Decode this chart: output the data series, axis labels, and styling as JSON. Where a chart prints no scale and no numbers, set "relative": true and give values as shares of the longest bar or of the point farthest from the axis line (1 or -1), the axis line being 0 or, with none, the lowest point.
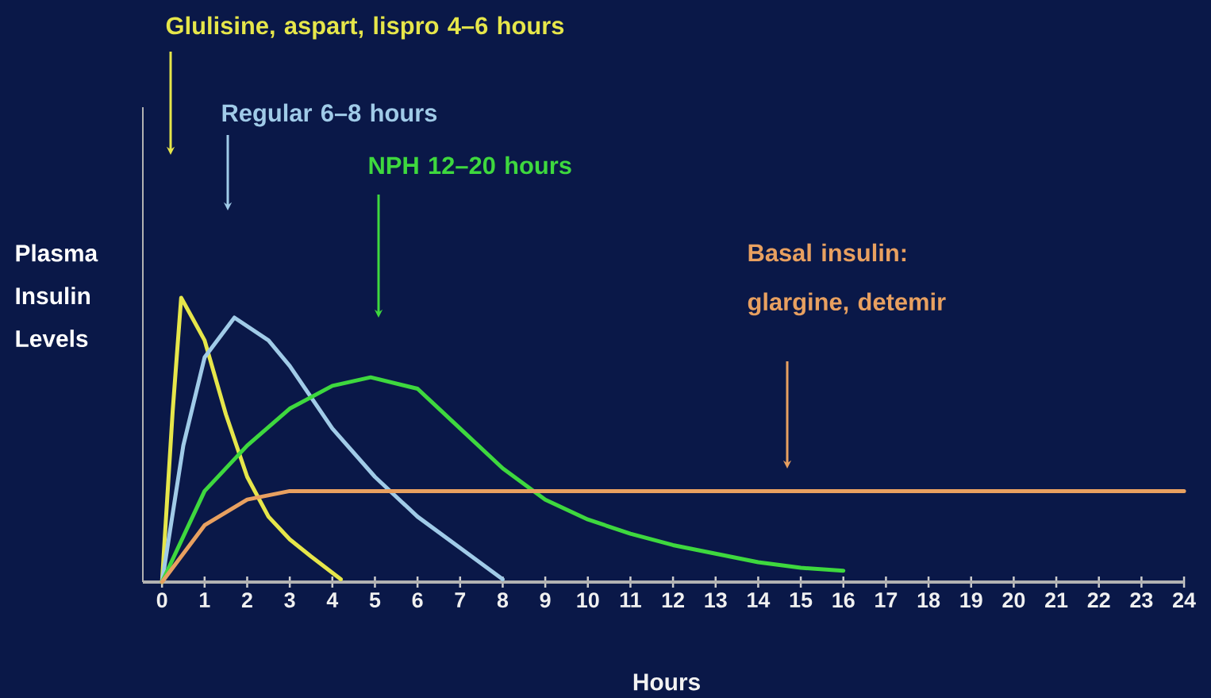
{
  "chart_data": {
    "type": "line",
    "relative": true,
    "xlabel": "Hours",
    "ylabel": "Plasma Insulin Levels",
    "xlim": [
      -0.45,
      24
    ],
    "xticks": [
      0,
      1,
      2,
      3,
      4,
      5,
      6,
      7,
      8,
      9,
      10,
      11,
      12,
      13,
      14,
      15,
      16,
      17,
      18,
      19,
      20,
      21,
      22,
      23,
      24
    ],
    "marker": "none",
    "line_style": "solid",
    "annotations": [
      "Glulisine, aspart, lispro 4–6 hours",
      "Regular 6–8 hours",
      "NPH 12–20 hours",
      "Basal insulin: glargine, detemir"
    ],
    "series": [
      {
        "color": "#e6e64a",
        "x": [
          0,
          0.25,
          0.45,
          1,
          1.5,
          2,
          2.5,
          3,
          3.5,
          4.2
        ],
        "values": [
          0,
          0.6,
          1,
          0.85,
          0.59,
          0.37,
          0.23,
          0.15,
          0.09,
          0.01
        ]
      },
      {
        "color": "#a0cbe8",
        "x": [
          0,
          0.5,
          1,
          1.7,
          2.5,
          3,
          4,
          5,
          6,
          7,
          8
        ],
        "values": [
          0,
          0.48,
          0.79,
          0.93,
          0.85,
          0.76,
          0.54,
          0.37,
          0.23,
          0.12,
          0.01
        ]
      },
      {
        "color": "#3ed83e",
        "x": [
          0,
          1,
          2,
          3,
          4,
          4.9,
          6,
          7,
          8,
          9,
          10,
          11,
          12,
          13,
          14,
          15,
          16
        ],
        "values": [
          0,
          0.32,
          0.48,
          0.61,
          0.69,
          0.72,
          0.68,
          0.54,
          0.4,
          0.29,
          0.22,
          0.17,
          0.13,
          0.1,
          0.07,
          0.05,
          0.04
        ]
      },
      {
        "color": "#e8a060",
        "x": [
          0,
          1,
          2,
          3,
          6,
          10,
          15,
          20,
          24
        ],
        "values": [
          0,
          0.2,
          0.29,
          0.32,
          0.32,
          0.32,
          0.32,
          0.32,
          0.32
        ]
      }
    ]
  }
}
